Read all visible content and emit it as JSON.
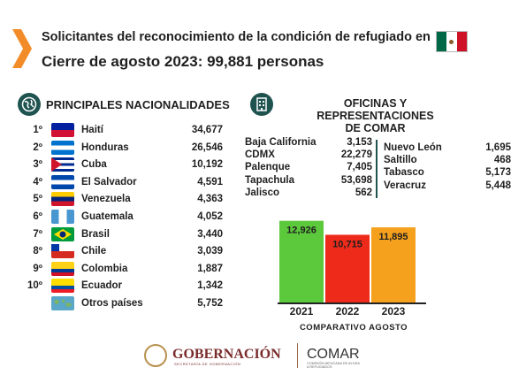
{
  "header": {
    "title": "Solicitantes del reconocimiento de la condición de refugiado en",
    "subtitle": "Cierre de agosto 2023: 99,881 personas",
    "accent_color": "#f28c28",
    "flag_icon": "mexico-flag-icon"
  },
  "nationalities": {
    "title": "PRINCIPALES NACIONALIDADES",
    "icon": "globe-icon",
    "items": [
      {
        "rank": "1º",
        "name": "Haití",
        "value": "34,677",
        "flag": "haiti-flag-icon"
      },
      {
        "rank": "2º",
        "name": "Honduras",
        "value": "26,546",
        "flag": "honduras-flag-icon"
      },
      {
        "rank": "3º",
        "name": "Cuba",
        "value": "10,192",
        "flag": "cuba-flag-icon"
      },
      {
        "rank": "4º",
        "name": "El Salvador",
        "value": "4,591",
        "flag": "el-salvador-flag-icon"
      },
      {
        "rank": "5º",
        "name": "Venezuela",
        "value": "4,363",
        "flag": "venezuela-flag-icon"
      },
      {
        "rank": "6º",
        "name": "Guatemala",
        "value": "4,052",
        "flag": "guatemala-flag-icon"
      },
      {
        "rank": "7º",
        "name": "Brasil",
        "value": "3,440",
        "flag": "brazil-flag-icon"
      },
      {
        "rank": "8º",
        "name": "Chile",
        "value": "3,039",
        "flag": "chile-flag-icon"
      },
      {
        "rank": "9º",
        "name": "Colombia",
        "value": "1,887",
        "flag": "colombia-flag-icon"
      },
      {
        "rank": "10º",
        "name": "Ecuador",
        "value": "1,342",
        "flag": "ecuador-flag-icon"
      },
      {
        "rank": "",
        "name": "Otros países",
        "value": "5,752",
        "flag": "world-map-icon"
      }
    ]
  },
  "offices": {
    "title_line1": "OFICINAS Y REPRESENTACIONES",
    "title_line2": "DE COMAR",
    "icon": "building-icon",
    "left": [
      {
        "name": "Baja California",
        "value": "3,153"
      },
      {
        "name": "CDMX",
        "value": "22,279"
      },
      {
        "name": "Palenque",
        "value": "7,405"
      },
      {
        "name": "Tapachula",
        "value": "53,698"
      },
      {
        "name": "Jalisco",
        "value": "562"
      }
    ],
    "right": [
      {
        "name": "Nuevo León",
        "value": "1,695"
      },
      {
        "name": "Saltillo",
        "value": "468"
      },
      {
        "name": "Tabasco",
        "value": "5,173"
      },
      {
        "name": "Veracruz",
        "value": "5,448"
      }
    ]
  },
  "chart_data": {
    "type": "bar",
    "categories": [
      "2021",
      "2022",
      "2023"
    ],
    "values": [
      12926,
      10715,
      11895
    ],
    "value_labels": [
      "12,926",
      "10,715",
      "11,895"
    ],
    "colors": [
      "#5cc83c",
      "#ee2a1a",
      "#f6a11e"
    ],
    "xlabel": "COMPARATIVO AGOSTO",
    "ylim": [
      0,
      14000
    ],
    "grid": false
  },
  "footer": {
    "gob": "GOBERNACIÓN",
    "gob_sub": "SECRETARÍA DE GOBERNACIÓN",
    "comar": "COMAR",
    "comar_sub": "COMISIÓN MEXICANA DE AYUDA A REFUGIADOS"
  }
}
